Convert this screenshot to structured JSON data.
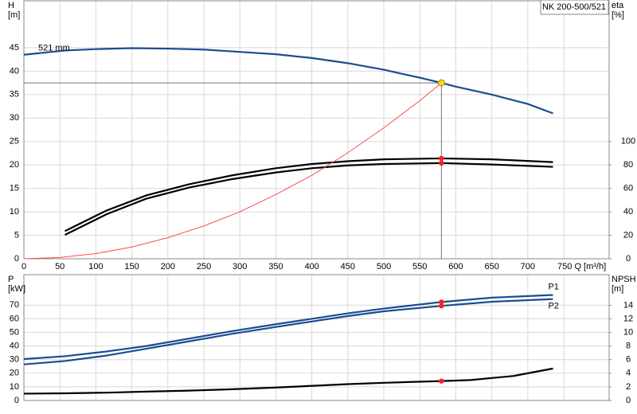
{
  "chart_data": [
    {
      "type": "line",
      "title": "NK 200-500/521",
      "xlim": [
        0,
        813
      ],
      "xticks": [
        0,
        50,
        100,
        150,
        200,
        250,
        300,
        350,
        400,
        450,
        500,
        550,
        600,
        650,
        700,
        {
          "value": 750,
          "label": "750 Q [m³/h]"
        }
      ],
      "ylim": [
        0,
        55
      ],
      "yticks": [
        0,
        5,
        10,
        15,
        20,
        25,
        30,
        35,
        40,
        45
      ],
      "y2lim": [
        0,
        220
      ],
      "y2ticks": [
        0,
        20,
        40,
        60,
        80,
        100
      ],
      "ylabel": {
        "name": "H",
        "unit": "[m]"
      },
      "y2label": {
        "name": "eta",
        "unit": "[%]"
      },
      "grid": true,
      "operating_point": {
        "x": 580,
        "y": 37.5
      },
      "series": [
        {
          "name": "521 mm",
          "color": "#1a4d8f",
          "x": [
            0,
            57,
            100,
            150,
            200,
            250,
            300,
            350,
            400,
            450,
            500,
            550,
            580,
            600,
            650,
            700,
            735
          ],
          "values": [
            43.5,
            44.4,
            44.7,
            44.9,
            44.8,
            44.6,
            44.1,
            43.6,
            42.8,
            41.7,
            40.3,
            38.6,
            37.5,
            36.7,
            35.0,
            33.0,
            31.0
          ]
        },
        {
          "color": "#000000",
          "axis": "y2",
          "x": [
            57,
            115,
            170,
            230,
            290,
            350,
            400,
            450,
            500,
            580,
            650,
            735
          ],
          "values": [
            23.6,
            41.2,
            54,
            63.6,
            71.2,
            77.2,
            80.8,
            83.2,
            84.8,
            85.6,
            84.8,
            82.4
          ]
        },
        {
          "color": "#000000",
          "axis": "y2",
          "x": [
            57,
            115,
            170,
            230,
            290,
            350,
            400,
            450,
            500,
            580,
            650,
            735
          ],
          "values": [
            20.4,
            38,
            51.2,
            60.8,
            68,
            73.6,
            77.2,
            79.6,
            80.8,
            81.6,
            80.4,
            78.4
          ]
        },
        {
          "color": "#ff4a4a",
          "x": [
            0,
            50,
            100,
            150,
            200,
            250,
            300,
            350,
            400,
            450,
            500,
            550,
            580
          ],
          "values": [
            0,
            0.28,
            1.1,
            2.5,
            4.5,
            7.0,
            10.0,
            13.7,
            17.8,
            22.6,
            27.9,
            33.7,
            37.5
          ]
        }
      ]
    },
    {
      "type": "line",
      "ylim": [
        0,
        92.4
      ],
      "yticks": [
        0,
        10,
        20,
        30,
        40,
        50,
        60,
        70
      ],
      "y2lim": [
        0,
        18.5
      ],
      "y2ticks": [
        0,
        2,
        4,
        6,
        8,
        10,
        12,
        14
      ],
      "ylabel": {
        "name": "P",
        "unit": "[kW]"
      },
      "y2label": {
        "name": "NPSH",
        "unit": "[m]"
      },
      "grid": true,
      "series": [
        {
          "name": "P1",
          "color": "#1a4d8f",
          "x": [
            0,
            57,
            115,
            170,
            230,
            290,
            350,
            400,
            450,
            500,
            580,
            650,
            735
          ],
          "values": [
            30.4,
            32.5,
            36,
            40,
            45.5,
            51,
            56,
            60,
            64,
            67.5,
            72.3,
            75.5,
            77.5
          ]
        },
        {
          "name": "P2",
          "color": "#1a4d8f",
          "x": [
            0,
            57,
            115,
            170,
            230,
            290,
            350,
            400,
            450,
            500,
            580,
            650,
            735
          ],
          "values": [
            26.5,
            29,
            33,
            38,
            43.5,
            49,
            54,
            58,
            62,
            65.5,
            69.5,
            72.5,
            74.5
          ]
        },
        {
          "color": "#000000",
          "axis": "y2",
          "x": [
            0,
            57,
            115,
            170,
            230,
            290,
            350,
            400,
            450,
            500,
            580,
            620,
            680,
            735
          ],
          "values": [
            1.0,
            1.05,
            1.15,
            1.3,
            1.45,
            1.65,
            1.9,
            2.15,
            2.4,
            2.6,
            2.85,
            3.0,
            3.6,
            4.7
          ]
        }
      ]
    }
  ]
}
